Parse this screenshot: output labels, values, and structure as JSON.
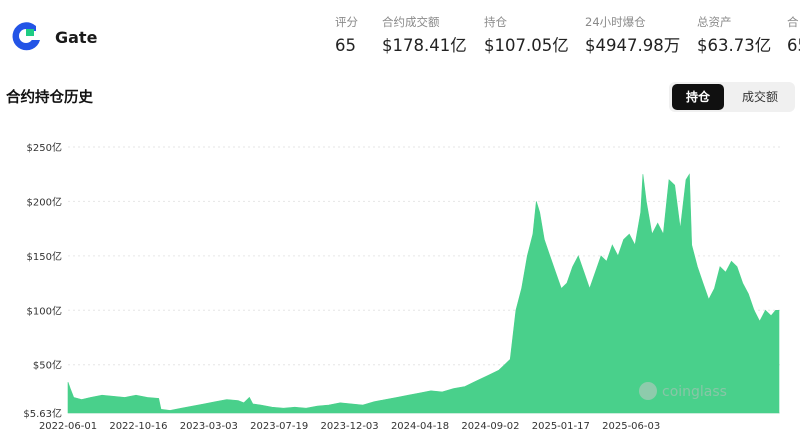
{
  "header": {
    "brand_name": "Gate",
    "logo_name": "gate-logo",
    "stats": [
      {
        "label": "评分",
        "value": "65"
      },
      {
        "label": "合约成交额",
        "value": "$178.41亿"
      },
      {
        "label": "持仓",
        "value": "$107.05亿"
      },
      {
        "label": "24小时爆仓",
        "value": "$4947.98万"
      },
      {
        "label": "总资产",
        "value": "$63.73亿"
      },
      {
        "label": "合",
        "value": "65"
      }
    ]
  },
  "section": {
    "title": "合约持仓历史",
    "tabs": [
      {
        "label": "持仓",
        "active": true
      },
      {
        "label": "成交额",
        "active": false
      }
    ]
  },
  "colors": {
    "area_fill": "#49d08b",
    "grid": "#e6e6e6",
    "axis_text": "#333333",
    "accent_dark": "#101010"
  },
  "watermark": "coinglass",
  "chart_data": {
    "type": "area",
    "title": "",
    "xlabel": "",
    "ylabel": "",
    "yunit": "亿 USD",
    "y_tick_labels": [
      "$250亿",
      "$200亿",
      "$150亿",
      "$100亿",
      "$50亿",
      "$5.63亿"
    ],
    "y_tick_values": [
      250,
      200,
      150,
      100,
      50,
      5.63
    ],
    "ylim": [
      5.63,
      250
    ],
    "x_tick_labels": [
      "2022-06-01",
      "2022-10-16",
      "2023-03-03",
      "2023-07-19",
      "2023-12-03",
      "2024-04-18",
      "2024-09-02",
      "2025-01-17",
      "2025-06-03"
    ],
    "grid": true,
    "series": [
      {
        "values": [
          [
            0,
            34
          ],
          [
            2,
            28
          ],
          [
            5,
            20
          ],
          [
            12,
            18
          ],
          [
            20,
            20
          ],
          [
            30,
            22
          ],
          [
            40,
            21
          ],
          [
            50,
            20
          ],
          [
            60,
            22
          ],
          [
            70,
            20
          ],
          [
            80,
            19
          ],
          [
            82,
            9
          ],
          [
            90,
            8
          ],
          [
            100,
            10
          ],
          [
            110,
            12
          ],
          [
            120,
            14
          ],
          [
            130,
            16
          ],
          [
            140,
            18
          ],
          [
            150,
            17
          ],
          [
            155,
            15
          ],
          [
            160,
            20
          ],
          [
            163,
            14
          ],
          [
            170,
            13
          ],
          [
            180,
            11
          ],
          [
            190,
            10
          ],
          [
            200,
            11
          ],
          [
            210,
            10
          ],
          [
            220,
            12
          ],
          [
            230,
            13
          ],
          [
            240,
            15
          ],
          [
            250,
            14
          ],
          [
            260,
            13
          ],
          [
            270,
            16
          ],
          [
            280,
            18
          ],
          [
            290,
            20
          ],
          [
            300,
            22
          ],
          [
            310,
            24
          ],
          [
            320,
            26
          ],
          [
            330,
            25
          ],
          [
            340,
            28
          ],
          [
            350,
            30
          ],
          [
            360,
            35
          ],
          [
            370,
            40
          ],
          [
            380,
            45
          ],
          [
            385,
            50
          ],
          [
            390,
            55
          ],
          [
            395,
            100
          ],
          [
            400,
            120
          ],
          [
            405,
            150
          ],
          [
            410,
            170
          ],
          [
            413,
            200
          ],
          [
            416,
            190
          ],
          [
            420,
            165
          ],
          [
            425,
            150
          ],
          [
            430,
            135
          ],
          [
            435,
            120
          ],
          [
            440,
            125
          ],
          [
            445,
            140
          ],
          [
            450,
            150
          ],
          [
            455,
            135
          ],
          [
            460,
            120
          ],
          [
            465,
            135
          ],
          [
            470,
            150
          ],
          [
            475,
            145
          ],
          [
            480,
            160
          ],
          [
            485,
            150
          ],
          [
            490,
            165
          ],
          [
            495,
            170
          ],
          [
            500,
            160
          ],
          [
            505,
            190
          ],
          [
            507,
            225
          ],
          [
            510,
            200
          ],
          [
            515,
            170
          ],
          [
            520,
            180
          ],
          [
            525,
            170
          ],
          [
            528,
            200
          ],
          [
            530,
            220
          ],
          [
            535,
            215
          ],
          [
            540,
            175
          ],
          [
            545,
            220
          ],
          [
            548,
            225
          ],
          [
            550,
            160
          ],
          [
            555,
            140
          ],
          [
            560,
            125
          ],
          [
            565,
            110
          ],
          [
            570,
            120
          ],
          [
            575,
            140
          ],
          [
            580,
            135
          ],
          [
            585,
            145
          ],
          [
            590,
            140
          ],
          [
            595,
            125
          ],
          [
            600,
            115
          ],
          [
            605,
            100
          ],
          [
            610,
            90
          ],
          [
            615,
            100
          ],
          [
            620,
            95
          ],
          [
            624,
            100
          ],
          [
            627,
            100
          ]
        ]
      }
    ]
  }
}
